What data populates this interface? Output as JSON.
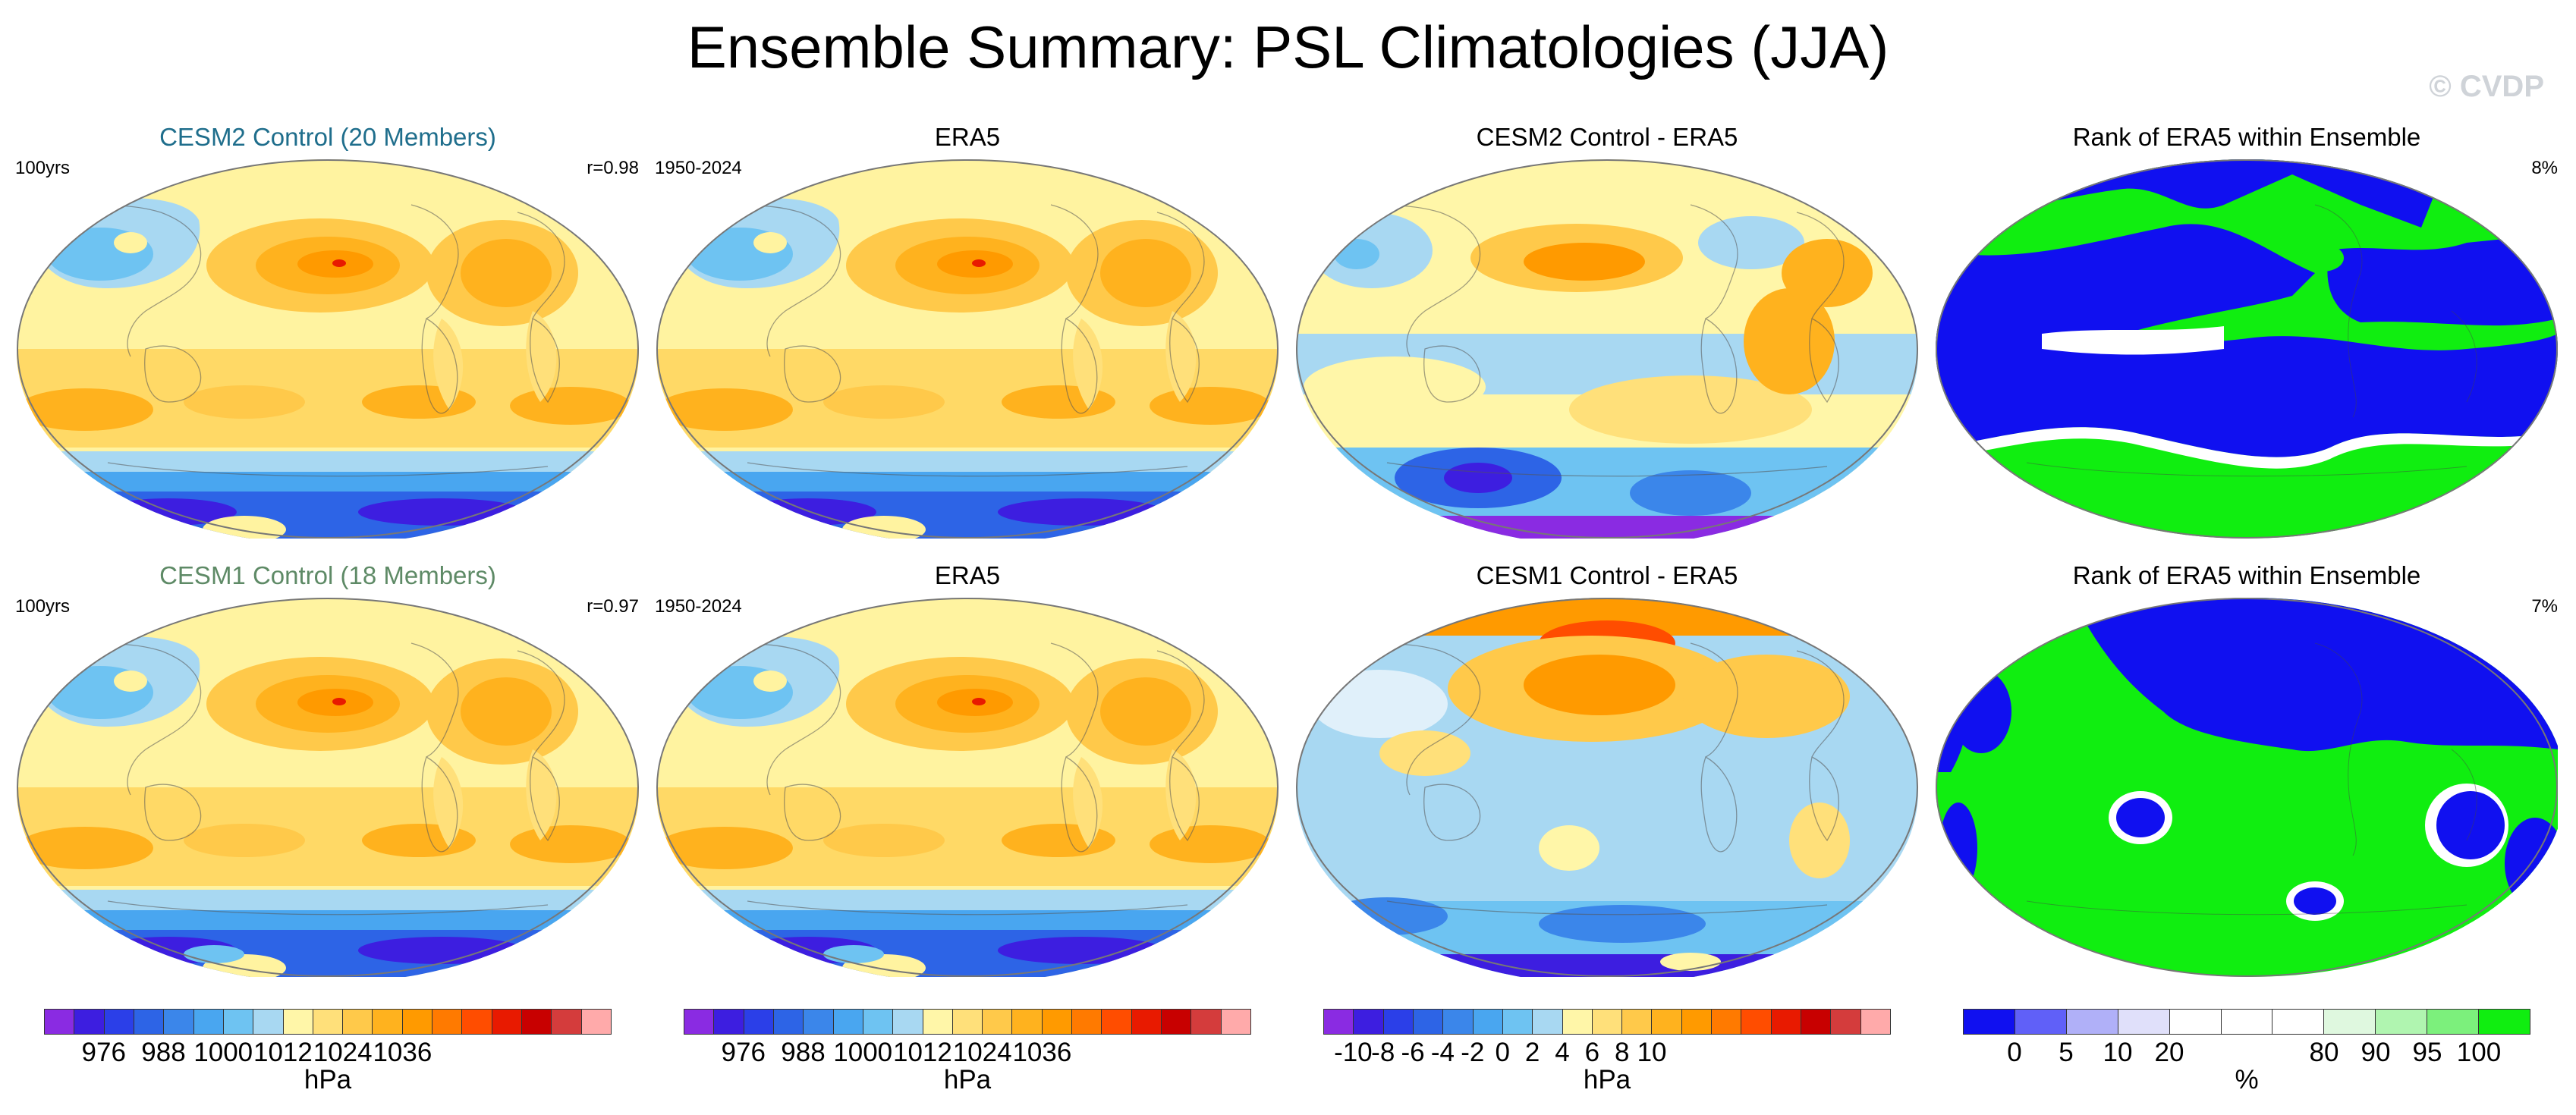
{
  "title": "Ensemble Summary: PSL Climatologies (JJA)",
  "watermark": "© CVDP",
  "rows": [
    {
      "panels": [
        {
          "title": "CESM2 Control (20 Members)",
          "title_color": "#1f6e8c",
          "left_label": "100yrs",
          "right_label": "r=0.98",
          "kind": "psl"
        },
        {
          "title": "ERA5",
          "title_color": "#000000",
          "left_label": "1950-2024",
          "right_label": "",
          "kind": "psl"
        },
        {
          "title": "CESM2 Control - ERA5",
          "title_color": "#000000",
          "left_label": "",
          "right_label": "",
          "kind": "diff"
        },
        {
          "title": "Rank of ERA5 within Ensemble",
          "title_color": "#000000",
          "left_label": "",
          "right_label": "8%",
          "kind": "rank"
        }
      ]
    },
    {
      "panels": [
        {
          "title": "CESM1 Control (18 Members)",
          "title_color": "#5e8a66",
          "left_label": "100yrs",
          "right_label": "r=0.97",
          "kind": "psl"
        },
        {
          "title": "ERA5",
          "title_color": "#000000",
          "left_label": "1950-2024",
          "right_label": "",
          "kind": "psl"
        },
        {
          "title": "CESM1 Control - ERA5",
          "title_color": "#000000",
          "left_label": "",
          "right_label": "",
          "kind": "diff"
        },
        {
          "title": "Rank of ERA5 within Ensemble",
          "title_color": "#000000",
          "left_label": "",
          "right_label": "7%",
          "kind": "rank"
        }
      ]
    }
  ],
  "colorbars": [
    {
      "units": "hPa",
      "colors": [
        "#8a2be2",
        "#3d1ee0",
        "#2b3fe8",
        "#2d64e6",
        "#3b86ea",
        "#49a6f0",
        "#6ec3f2",
        "#a8d8f2",
        "#fff6a8",
        "#ffe07a",
        "#ffc94a",
        "#ffb21e",
        "#ff9a00",
        "#ff7a00",
        "#ff4d00",
        "#e81a00",
        "#c80000",
        "#d43c3c",
        "#ffaaaa"
      ],
      "labels": [
        "976",
        "988",
        "1000",
        "1012",
        "1024",
        "1036"
      ],
      "label_boundaries": [
        2,
        4,
        6,
        8,
        10,
        12
      ]
    },
    {
      "units": "hPa",
      "colors": [
        "#8a2be2",
        "#3d1ee0",
        "#2b3fe8",
        "#2d64e6",
        "#3b86ea",
        "#49a6f0",
        "#6ec3f2",
        "#a8d8f2",
        "#fff6a8",
        "#ffe07a",
        "#ffc94a",
        "#ffb21e",
        "#ff9a00",
        "#ff7a00",
        "#ff4d00",
        "#e81a00",
        "#c80000",
        "#d43c3c",
        "#ffaaaa"
      ],
      "labels": [
        "976",
        "988",
        "1000",
        "1012",
        "1024",
        "1036"
      ],
      "label_boundaries": [
        2,
        4,
        6,
        8,
        10,
        12
      ]
    },
    {
      "units": "hPa",
      "colors": [
        "#8a2be2",
        "#3d1ee0",
        "#2b3fe8",
        "#2d64e6",
        "#3b86ea",
        "#49a6f0",
        "#6ec3f2",
        "#a8d8f2",
        "#fff6a8",
        "#ffe07a",
        "#ffc94a",
        "#ffb21e",
        "#ff9a00",
        "#ff7a00",
        "#ff4d00",
        "#e81a00",
        "#c80000",
        "#d43c3c",
        "#ffaaaa"
      ],
      "labels": [
        "-10",
        "-8",
        "-6",
        "-4",
        "-2",
        "0",
        "2",
        "4",
        "6",
        "8",
        "10"
      ],
      "label_boundaries": [
        1,
        2,
        3,
        4,
        5,
        6,
        7,
        8,
        9,
        10,
        11
      ]
    },
    {
      "units": "%",
      "colors": [
        "#1010f0",
        "#6060f8",
        "#b0b0f8",
        "#e0e0fa",
        "#ffffff",
        "#ffffff",
        "#ffffff",
        "#dff8df",
        "#b0f5b0",
        "#7cf07c",
        "#10ee10"
      ],
      "labels": [
        "0",
        "5",
        "10",
        "20",
        "80",
        "90",
        "95",
        "100"
      ],
      "label_boundaries": [
        1,
        2,
        3,
        4,
        7,
        8,
        9,
        10
      ]
    }
  ]
}
